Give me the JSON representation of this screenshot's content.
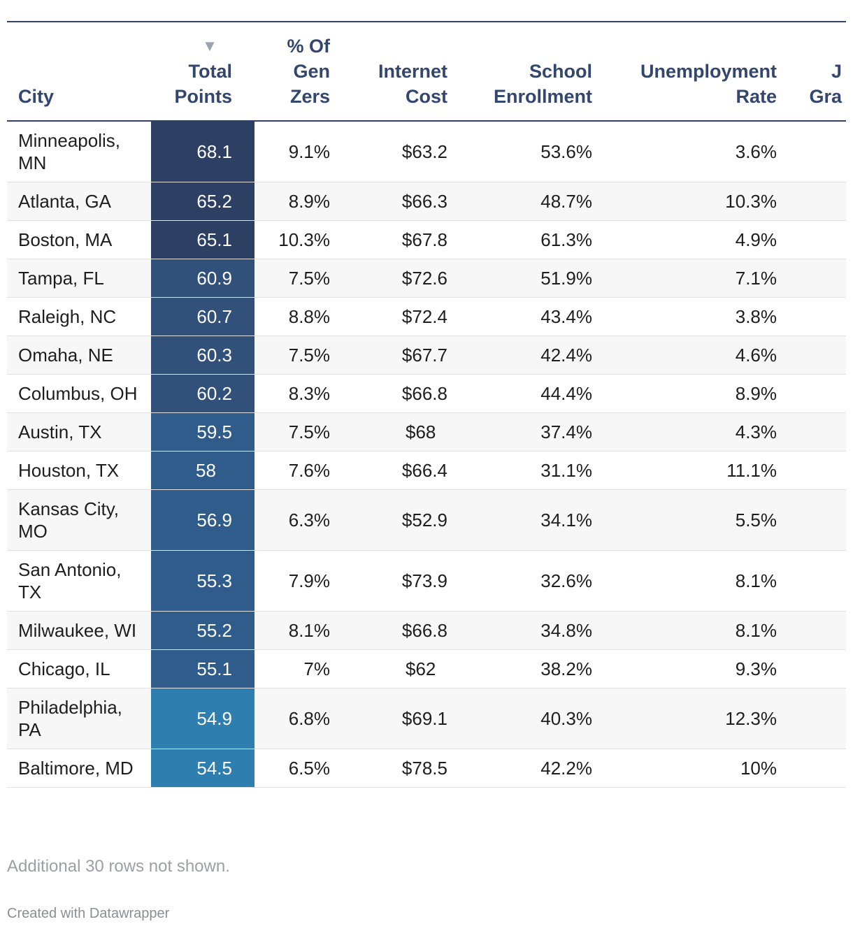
{
  "chart_data": {
    "type": "table",
    "sort": {
      "column": "Total Points",
      "direction": "descending"
    },
    "columns": [
      "City",
      "Total Points",
      "% Of Gen Zers",
      "Internet Cost",
      "School Enrollment",
      "Unemployment Rate",
      "J Gra"
    ],
    "header": {
      "city": "City",
      "total_points_line1": "Total",
      "total_points_line2": "Points",
      "genz_line1": "% Of",
      "genz_line2": "Gen",
      "genz_line3": "Zers",
      "internet_line1": "Internet",
      "internet_line2": "Cost",
      "school_line1": "School",
      "school_line2": "Enrollment",
      "unemp_line1": "Unemployment",
      "unemp_line2": "Rate",
      "cut_line1": "J",
      "cut_line2": "Gra",
      "sort_arrow": "▼"
    },
    "rows": [
      {
        "city": "Minneapolis, MN",
        "total": "68.1",
        "genz": "9.1%",
        "internet": "$63.2",
        "school": "53.6%",
        "unemp": "3.6%",
        "shade": "#2d3f63"
      },
      {
        "city": "Atlanta, GA",
        "total": "65.2",
        "genz": "8.9%",
        "internet": "$66.3",
        "school": "48.7%",
        "unemp": "10.3%",
        "shade": "#2d3f63"
      },
      {
        "city": "Boston, MA",
        "total": "65.1",
        "genz": "10.3%",
        "internet": "$67.8",
        "school": "61.3%",
        "unemp": "4.9%",
        "shade": "#2d3f63"
      },
      {
        "city": "Tampa, FL",
        "total": "60.9",
        "genz": "7.5%",
        "internet": "$72.6",
        "school": "51.9%",
        "unemp": "7.1%",
        "shade": "#31507a"
      },
      {
        "city": "Raleigh, NC",
        "total": "60.7",
        "genz": "8.8%",
        "internet": "$72.4",
        "school": "43.4%",
        "unemp": "3.8%",
        "shade": "#31507a"
      },
      {
        "city": "Omaha, NE",
        "total": "60.3",
        "genz": "7.5%",
        "internet": "$67.7",
        "school": "42.4%",
        "unemp": "4.6%",
        "shade": "#31507a"
      },
      {
        "city": "Columbus, OH",
        "total": "60.2",
        "genz": "8.3%",
        "internet": "$66.8",
        "school": "44.4%",
        "unemp": "8.9%",
        "shade": "#31507a"
      },
      {
        "city": "Austin, TX",
        "total": "59.5",
        "genz": "7.5%",
        "internet": "$68",
        "school": "37.4%",
        "unemp": "4.3%",
        "shade": "#305c8c"
      },
      {
        "city": "Houston, TX",
        "total": "58",
        "genz": "7.6%",
        "internet": "$66.4",
        "school": "31.1%",
        "unemp": "11.1%",
        "shade": "#305c8c"
      },
      {
        "city": "Kansas City, MO",
        "total": "56.9",
        "genz": "6.3%",
        "internet": "$52.9",
        "school": "34.1%",
        "unemp": "5.5%",
        "shade": "#305c8c"
      },
      {
        "city": "San Antonio, TX",
        "total": "55.3",
        "genz": "7.9%",
        "internet": "$73.9",
        "school": "32.6%",
        "unemp": "8.1%",
        "shade": "#305c8c"
      },
      {
        "city": "Milwaukee, WI",
        "total": "55.2",
        "genz": "8.1%",
        "internet": "$66.8",
        "school": "34.8%",
        "unemp": "8.1%",
        "shade": "#305c8c"
      },
      {
        "city": "Chicago, IL",
        "total": "55.1",
        "genz": "7%",
        "internet": "$62",
        "school": "38.2%",
        "unemp": "9.3%",
        "shade": "#305c8c"
      },
      {
        "city": "Philadelphia, PA",
        "total": "54.9",
        "genz": "6.8%",
        "internet": "$69.1",
        "school": "40.3%",
        "unemp": "12.3%",
        "shade": "#2e7eb0"
      },
      {
        "city": "Baltimore, MD",
        "total": "54.5",
        "genz": "6.5%",
        "internet": "$78.5",
        "school": "42.2%",
        "unemp": "10%",
        "shade": "#2e7eb0"
      }
    ]
  },
  "footer": {
    "note": "Additional 30 rows not shown.",
    "credit": "Created with Datawrapper"
  }
}
